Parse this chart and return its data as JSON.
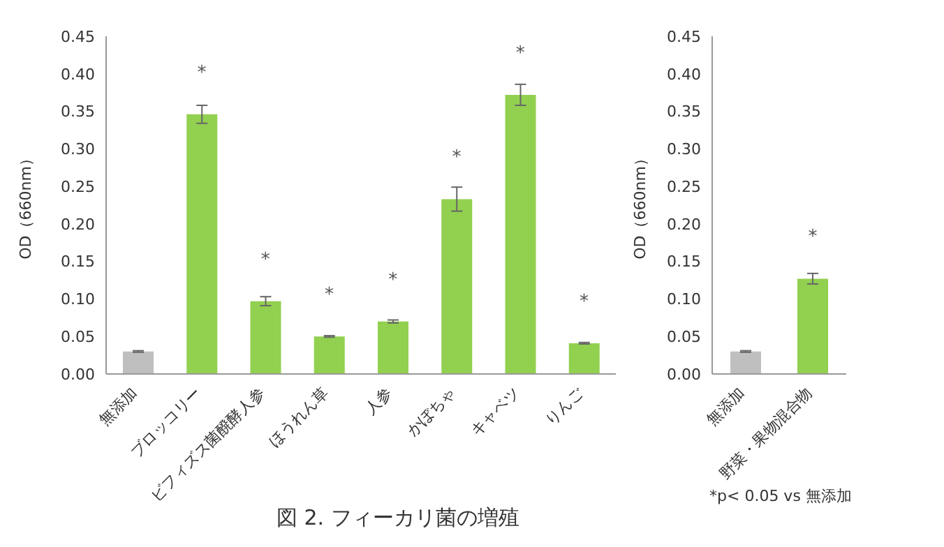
{
  "chart_data": [
    {
      "type": "bar",
      "categories": [
        "無添加",
        "ブロッコリー",
        "ビフィズス菌醗酵人参",
        "ほうれん草",
        "人参",
        "かぼちゃ",
        "キャベツ",
        "りんご"
      ],
      "values": [
        0.03,
        0.346,
        0.097,
        0.05,
        0.07,
        0.233,
        0.372,
        0.041
      ],
      "errors": [
        0.001,
        0.012,
        0.006,
        0.001,
        0.002,
        0.016,
        0.014,
        0.001
      ],
      "colors": [
        "#bfbfbf",
        "#92d050",
        "#92d050",
        "#92d050",
        "#92d050",
        "#92d050",
        "#92d050",
        "#92d050"
      ],
      "ylabel": "OD（660nm）",
      "ylim": [
        0,
        0.45
      ],
      "yticks": [
        {
          "value": 0,
          "label": "0.00"
        },
        {
          "value": 0.05,
          "label": "0.05"
        },
        {
          "value": 0.1,
          "label": "0.10"
        },
        {
          "value": 0.15,
          "label": "0.15"
        },
        {
          "value": 0.2,
          "label": "0.20"
        },
        {
          "value": 0.25,
          "label": "0.25"
        },
        {
          "value": 0.3,
          "label": "0.30"
        },
        {
          "value": 0.35,
          "label": "0.35"
        },
        {
          "value": 0.4,
          "label": "0.40"
        },
        {
          "value": 0.45,
          "label": "0.45"
        }
      ],
      "grid": false,
      "legend": false,
      "annotations": [
        {
          "text": "*",
          "x": "ブロッコリー",
          "y": 0.346
        },
        {
          "text": "*",
          "x": "ビフィズス菌醗酵人参",
          "y": 0.097
        },
        {
          "text": "*",
          "x": "ほうれん草",
          "y": 0.05
        },
        {
          "text": "*",
          "x": "人参",
          "y": 0.07
        },
        {
          "text": "*",
          "x": "かぼちゃ",
          "y": 0.233
        },
        {
          "text": "*",
          "x": "キャベツ",
          "y": 0.372
        },
        {
          "text": "*",
          "x": "りんご",
          "y": 0.041
        },
        "図 2.  フィーカリ菌の増殖"
      ]
    },
    {
      "type": "bar",
      "categories": [
        "無添加",
        "野菜・果物混合物"
      ],
      "values": [
        0.03,
        0.127
      ],
      "errors": [
        0.001,
        0.007
      ],
      "colors": [
        "#bfbfbf",
        "#92d050"
      ],
      "ylabel": "OD（660nm）",
      "ylim": [
        0,
        0.45
      ],
      "yticks": [
        {
          "value": 0,
          "label": "0.00"
        },
        {
          "value": 0.05,
          "label": "0.05"
        },
        {
          "value": 0.1,
          "label": "0.10"
        },
        {
          "value": 0.15,
          "label": "0.15"
        },
        {
          "value": 0.2,
          "label": "0.20"
        },
        {
          "value": 0.25,
          "label": "0.25"
        },
        {
          "value": 0.3,
          "label": "0.30"
        },
        {
          "value": 0.35,
          "label": "0.35"
        },
        {
          "value": 0.4,
          "label": "0.40"
        },
        {
          "value": 0.45,
          "label": "0.45"
        }
      ],
      "grid": false,
      "legend": false,
      "annotations": [
        {
          "text": "*",
          "x": "野菜・果物混合物",
          "y": 0.127
        },
        "*p< 0.05 vs 無添加"
      ]
    }
  ]
}
